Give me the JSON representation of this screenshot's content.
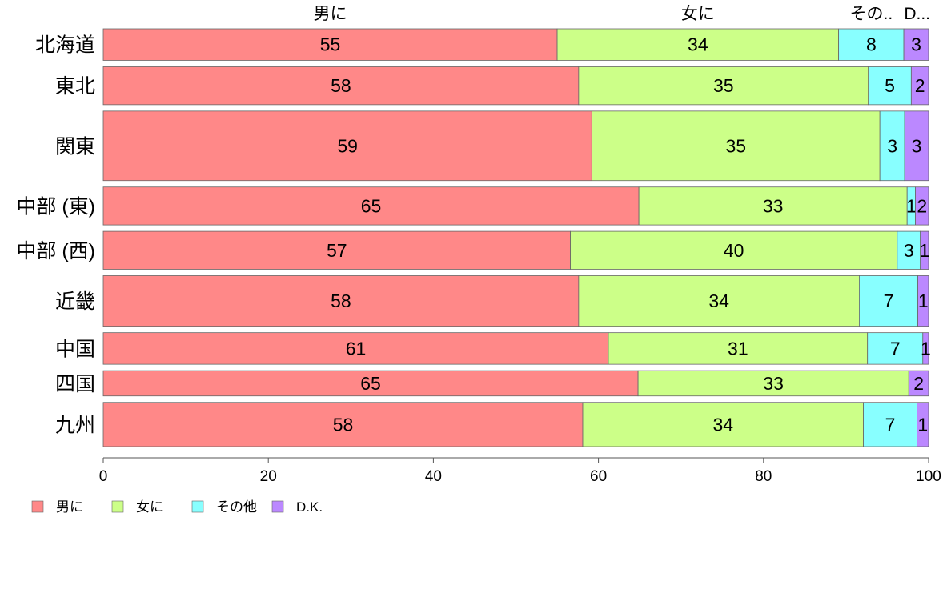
{
  "chart_data": {
    "type": "bar",
    "orientation": "horizontal",
    "stacked": true,
    "variable_width": true,
    "categories": [
      "北海道",
      "東北",
      "関東",
      "中部 (東)",
      "中部 (西)",
      "近畿",
      "中国",
      "四国",
      "九州"
    ],
    "series": [
      {
        "name": "男に",
        "values": [
          55.0,
          57.6,
          59.2,
          64.9,
          56.6,
          57.6,
          61.2,
          64.8,
          58.1
        ],
        "labels": [
          "55",
          "58",
          "59",
          "65",
          "57",
          "58",
          "61",
          "65",
          "58"
        ]
      },
      {
        "name": "女に",
        "values": [
          34.1,
          35.1,
          34.9,
          32.5,
          39.6,
          34.0,
          31.4,
          32.8,
          34.0
        ],
        "labels": [
          "34",
          "35",
          "35",
          "33",
          "40",
          "34",
          "31",
          "33",
          "34"
        ]
      },
      {
        "name": "その他",
        "values": [
          7.9,
          5.2,
          3.0,
          1.0,
          2.8,
          7.1,
          6.7,
          0.0,
          6.5
        ],
        "labels": [
          "8",
          "5",
          "3",
          "1",
          "3",
          "7",
          "7",
          "",
          "7"
        ]
      },
      {
        "name": "D.K.",
        "values": [
          3.0,
          2.1,
          2.9,
          1.6,
          1.0,
          1.3,
          0.7,
          2.4,
          1.4
        ],
        "labels": [
          "3",
          "2",
          "3",
          "2",
          "1",
          "1",
          "1",
          "2",
          "1"
        ]
      }
    ],
    "category_weights": [
      5,
      6,
      11,
      6,
      6,
      8,
      5,
      4,
      7
    ],
    "column_headers": [
      "男に",
      "女に",
      "その..",
      "D..."
    ],
    "xlim": [
      0,
      100
    ],
    "x_ticks": [
      0,
      20,
      40,
      60,
      80,
      100
    ],
    "legend": {
      "position": "bottom-left",
      "entries": [
        "男に",
        "女に",
        "その他",
        "D.K."
      ]
    },
    "colors": [
      "#ff8888",
      "#ccff88",
      "#88ffff",
      "#bb88ff"
    ],
    "grid": false
  }
}
